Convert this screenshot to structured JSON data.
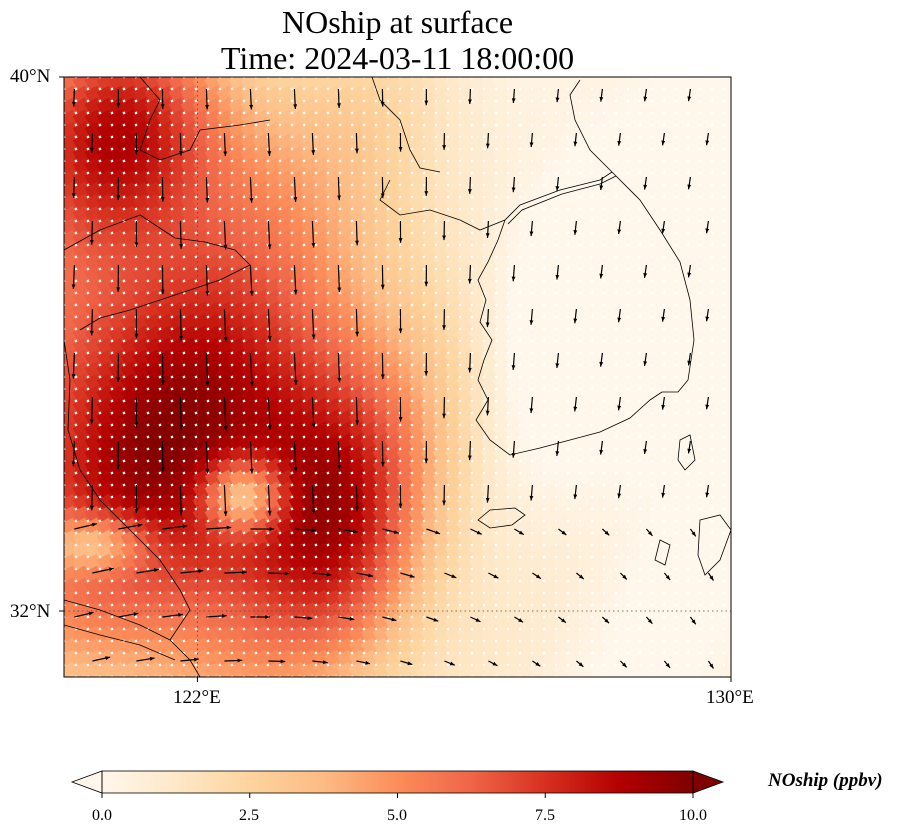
{
  "title": {
    "line1": "NOship at surface",
    "line2": "Time: 2024-03-11 18:00:00"
  },
  "map": {
    "lon_range": [
      120,
      130
    ],
    "lat_range": [
      31,
      40
    ],
    "lon_ticks": [
      {
        "value": 122,
        "label": "122°E"
      },
      {
        "value": 130,
        "label": "130°E"
      }
    ],
    "lat_ticks": [
      {
        "value": 40,
        "label": "40°N"
      },
      {
        "value": 32,
        "label": "32°N"
      }
    ],
    "gridlines": "dotted",
    "field_name": "NOship",
    "units": "ppbv",
    "features": [
      "coastlines",
      "country borders",
      "wind vectors"
    ]
  },
  "colorbar": {
    "label": "NOship (ppbv)",
    "min": 0.0,
    "max": 10.0,
    "extend": "both",
    "colormap": "OrRd",
    "ticks": [
      {
        "value": 0.0,
        "label": "0.0"
      },
      {
        "value": 2.5,
        "label": "2.5"
      },
      {
        "value": 5.0,
        "label": "5.0"
      },
      {
        "value": 7.5,
        "label": "7.5"
      },
      {
        "value": 10.0,
        "label": "10.0"
      }
    ]
  },
  "colors": {
    "stops": [
      "#fff7ec",
      "#fee8c8",
      "#fdd49e",
      "#fdbb84",
      "#fc8d59",
      "#ef6548",
      "#d7301f",
      "#b30000",
      "#7f0000"
    ]
  }
}
